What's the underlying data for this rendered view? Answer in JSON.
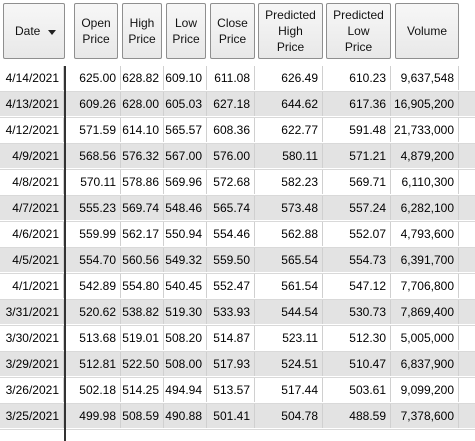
{
  "columns": [
    {
      "key": "date",
      "label": "Date"
    },
    {
      "key": "open",
      "label": "Open\nPrice"
    },
    {
      "key": "high",
      "label": "High\nPrice"
    },
    {
      "key": "low",
      "label": "Low\nPrice"
    },
    {
      "key": "close",
      "label": "Close\nPrice"
    },
    {
      "key": "pred_high",
      "label": "Predicted\nHigh\nPrice"
    },
    {
      "key": "pred_low",
      "label": "Predicted\nLow\nPrice"
    },
    {
      "key": "volume",
      "label": "Volume"
    }
  ],
  "rows": [
    {
      "date": "4/14/2021",
      "open": "625.00",
      "high": "628.82",
      "low": "609.10",
      "close": "611.08",
      "pred_high": "626.49",
      "pred_low": "610.23",
      "volume": "9,637,548"
    },
    {
      "date": "4/13/2021",
      "open": "609.26",
      "high": "628.00",
      "low": "605.03",
      "close": "627.18",
      "pred_high": "644.62",
      "pred_low": "617.36",
      "volume": "16,905,200"
    },
    {
      "date": "4/12/2021",
      "open": "571.59",
      "high": "614.10",
      "low": "565.57",
      "close": "608.36",
      "pred_high": "622.77",
      "pred_low": "591.48",
      "volume": "21,733,000"
    },
    {
      "date": "4/9/2021",
      "open": "568.56",
      "high": "576.32",
      "low": "567.00",
      "close": "576.00",
      "pred_high": "580.11",
      "pred_low": "571.21",
      "volume": "4,879,200"
    },
    {
      "date": "4/8/2021",
      "open": "570.11",
      "high": "578.86",
      "low": "569.96",
      "close": "572.68",
      "pred_high": "582.23",
      "pred_low": "569.71",
      "volume": "6,110,300"
    },
    {
      "date": "4/7/2021",
      "open": "555.23",
      "high": "569.74",
      "low": "548.46",
      "close": "565.74",
      "pred_high": "573.48",
      "pred_low": "557.24",
      "volume": "6,282,100"
    },
    {
      "date": "4/6/2021",
      "open": "559.99",
      "high": "562.17",
      "low": "550.94",
      "close": "554.46",
      "pred_high": "562.88",
      "pred_low": "552.07",
      "volume": "4,793,600"
    },
    {
      "date": "4/5/2021",
      "open": "554.70",
      "high": "560.56",
      "low": "549.32",
      "close": "559.50",
      "pred_high": "565.54",
      "pred_low": "554.73",
      "volume": "6,391,700"
    },
    {
      "date": "4/1/2021",
      "open": "542.89",
      "high": "554.80",
      "low": "540.45",
      "close": "552.47",
      "pred_high": "561.54",
      "pred_low": "547.12",
      "volume": "7,706,800"
    },
    {
      "date": "3/31/2021",
      "open": "520.62",
      "high": "538.82",
      "low": "519.30",
      "close": "533.93",
      "pred_high": "544.54",
      "pred_low": "530.73",
      "volume": "7,869,400"
    },
    {
      "date": "3/30/2021",
      "open": "513.68",
      "high": "519.01",
      "low": "508.20",
      "close": "514.87",
      "pred_high": "523.11",
      "pred_low": "512.30",
      "volume": "5,005,000"
    },
    {
      "date": "3/29/2021",
      "open": "512.81",
      "high": "522.50",
      "low": "508.00",
      "close": "517.93",
      "pred_high": "524.51",
      "pred_low": "510.47",
      "volume": "6,837,900"
    },
    {
      "date": "3/26/2021",
      "open": "502.18",
      "high": "514.25",
      "low": "494.94",
      "close": "513.57",
      "pred_high": "517.44",
      "pred_low": "503.61",
      "volume": "9,099,200"
    },
    {
      "date": "3/25/2021",
      "open": "499.98",
      "high": "508.59",
      "low": "490.88",
      "close": "501.41",
      "pred_high": "504.78",
      "pred_low": "488.59",
      "volume": "7,378,600"
    }
  ]
}
